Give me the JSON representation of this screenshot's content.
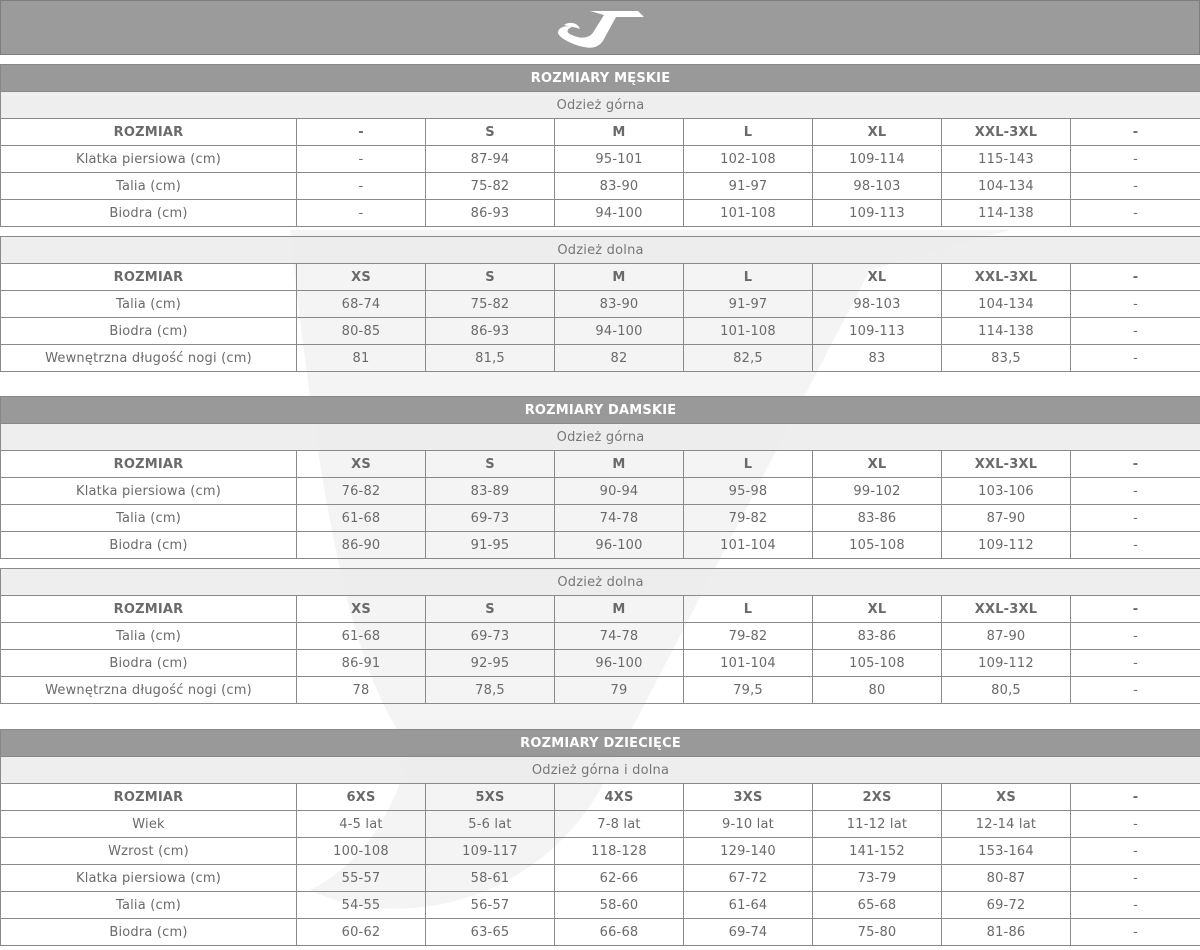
{
  "brand": {
    "logo_text": "Joma",
    "header_color": "#9b9b9b",
    "title_color": "#999999",
    "subheader_color": "#ececec"
  },
  "sections": [
    {
      "title": "ROZMIARY MĘSKIE",
      "tables": [
        {
          "subtitle": "Odzież górna",
          "header": [
            "ROZMIAR",
            "-",
            "S",
            "M",
            "L",
            "XL",
            "XXL-3XL",
            "-"
          ],
          "rows": [
            [
              "Klatka piersiowa (cm)",
              "-",
              "87-94",
              "95-101",
              "102-108",
              "109-114",
              "115-143",
              "-"
            ],
            [
              "Talia (cm)",
              "-",
              "75-82",
              "83-90",
              "91-97",
              "98-103",
              "104-134",
              "-"
            ],
            [
              "Biodra (cm)",
              "-",
              "86-93",
              "94-100",
              "101-108",
              "109-113",
              "114-138",
              "-"
            ]
          ]
        },
        {
          "subtitle": "Odzież dolna",
          "header": [
            "ROZMIAR",
            "XS",
            "S",
            "M",
            "L",
            "XL",
            "XXL-3XL",
            "-"
          ],
          "rows": [
            [
              "Talia (cm)",
              "68-74",
              "75-82",
              "83-90",
              "91-97",
              "98-103",
              "104-134",
              "-"
            ],
            [
              "Biodra (cm)",
              "80-85",
              "86-93",
              "94-100",
              "101-108",
              "109-113",
              "114-138",
              "-"
            ],
            [
              "Wewnętrzna długość nogi (cm)",
              "81",
              "81,5",
              "82",
              "82,5",
              "83",
              "83,5",
              "-"
            ]
          ]
        }
      ]
    },
    {
      "title": "ROZMIARY DAMSKIE",
      "tables": [
        {
          "subtitle": "Odzież górna",
          "header": [
            "ROZMIAR",
            "XS",
            "S",
            "M",
            "L",
            "XL",
            "XXL-3XL",
            "-"
          ],
          "rows": [
            [
              "Klatka piersiowa (cm)",
              "76-82",
              "83-89",
              "90-94",
              "95-98",
              "99-102",
              "103-106",
              "-"
            ],
            [
              "Talia (cm)",
              "61-68",
              "69-73",
              "74-78",
              "79-82",
              "83-86",
              "87-90",
              "-"
            ],
            [
              "Biodra (cm)",
              "86-90",
              "91-95",
              "96-100",
              "101-104",
              "105-108",
              "109-112",
              "-"
            ]
          ]
        },
        {
          "subtitle": "Odzież dolna",
          "header": [
            "ROZMIAR",
            "XS",
            "S",
            "M",
            "L",
            "XL",
            "XXL-3XL",
            "-"
          ],
          "rows": [
            [
              "Talia (cm)",
              "61-68",
              "69-73",
              "74-78",
              "79-82",
              "83-86",
              "87-90",
              "-"
            ],
            [
              "Biodra (cm)",
              "86-91",
              "92-95",
              "96-100",
              "101-104",
              "105-108",
              "109-112",
              "-"
            ],
            [
              "Wewnętrzna długość nogi (cm)",
              "78",
              "78,5",
              "79",
              "79,5",
              "80",
              "80,5",
              "-"
            ]
          ]
        }
      ]
    },
    {
      "title": "ROZMIARY DZIECIĘCE",
      "tables": [
        {
          "subtitle": "Odzież górna i dolna",
          "header": [
            "ROZMIAR",
            "6XS",
            "5XS",
            "4XS",
            "3XS",
            "2XS",
            "XS",
            "-"
          ],
          "rows": [
            [
              "Wiek",
              "4-5 lat",
              "5-6 lat",
              "7-8 lat",
              "9-10 lat",
              "11-12 lat",
              "12-14 lat",
              "-"
            ],
            [
              "Wzrost (cm)",
              "100-108",
              "109-117",
              "118-128",
              "129-140",
              "141-152",
              "153-164",
              "-"
            ],
            [
              "Klatka piersiowa (cm)",
              "55-57",
              "58-61",
              "62-66",
              "67-72",
              "73-79",
              "80-87",
              "-"
            ],
            [
              "Talia (cm)",
              "54-55",
              "56-57",
              "58-60",
              "61-64",
              "65-68",
              "69-72",
              "-"
            ],
            [
              "Biodra (cm)",
              "60-62",
              "63-65",
              "66-68",
              "69-74",
              "75-80",
              "81-86",
              "-"
            ]
          ]
        }
      ]
    }
  ]
}
